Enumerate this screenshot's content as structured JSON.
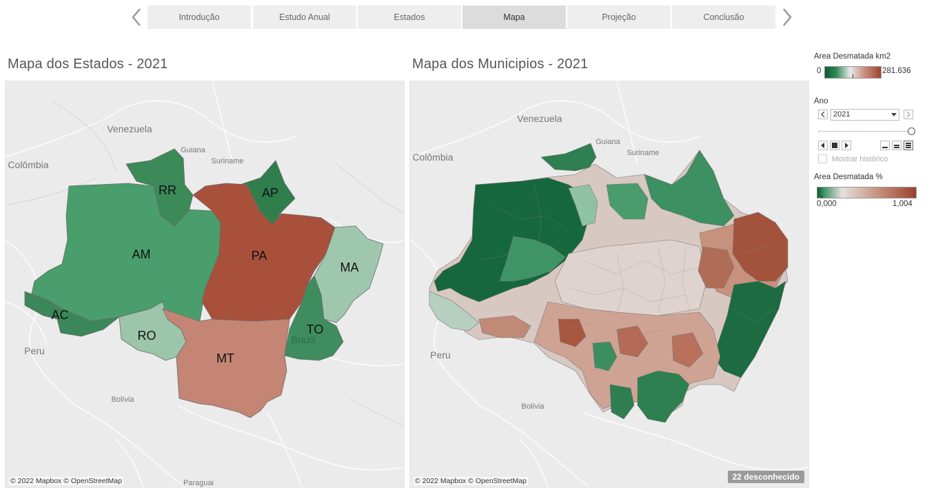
{
  "nav": {
    "tabs": [
      {
        "label": "Introdução"
      },
      {
        "label": "Estudo Anual"
      },
      {
        "label": "Estados"
      },
      {
        "label": "Mapa"
      },
      {
        "label": "Projeção"
      },
      {
        "label": "Conclusão"
      }
    ],
    "active_index": 3
  },
  "map_states": {
    "title": "Mapa dos Estados - 2021",
    "attribution": "© 2022 Mapbox © OpenStreetMap",
    "basemap_labels": [
      "Venezuela",
      "Guiana",
      "Suriname",
      "Colômbia",
      "Peru",
      "Bolívia",
      "Paraguai",
      "Brazil"
    ],
    "state_labels": [
      "RR",
      "AP",
      "AM",
      "PA",
      "MA",
      "AC",
      "TO",
      "RO",
      "MT"
    ],
    "colors": {
      "AM": "#4a9e6b",
      "RR": "#3b8a58",
      "AP": "#2f7e4c",
      "PA": "#a9503b",
      "MA": "#9fc7ae",
      "AC": "#3b875a",
      "TO": "#3f8d5e",
      "RO": "#9cc5aa",
      "MT": "#c48575"
    }
  },
  "map_municipios": {
    "title": "Mapa dos Municipios - 2021",
    "attribution": "© 2022 Mapbox © OpenStreetMap",
    "basemap_labels": [
      "Venezuela",
      "Guiana",
      "Suriname",
      "Colômbia",
      "Peru",
      "Bolívia"
    ],
    "unknown_badge": "22 desconhecido"
  },
  "legend_km2": {
    "title": "Area Desmatada km2",
    "min": "0",
    "max": "281.636"
  },
  "year_filter": {
    "title": "Ano",
    "selected": "2021",
    "show_history_label": "Mostrar histórico"
  },
  "legend_pct": {
    "title": "Area Desmatada %",
    "min": "0,000",
    "max": "1,004"
  }
}
